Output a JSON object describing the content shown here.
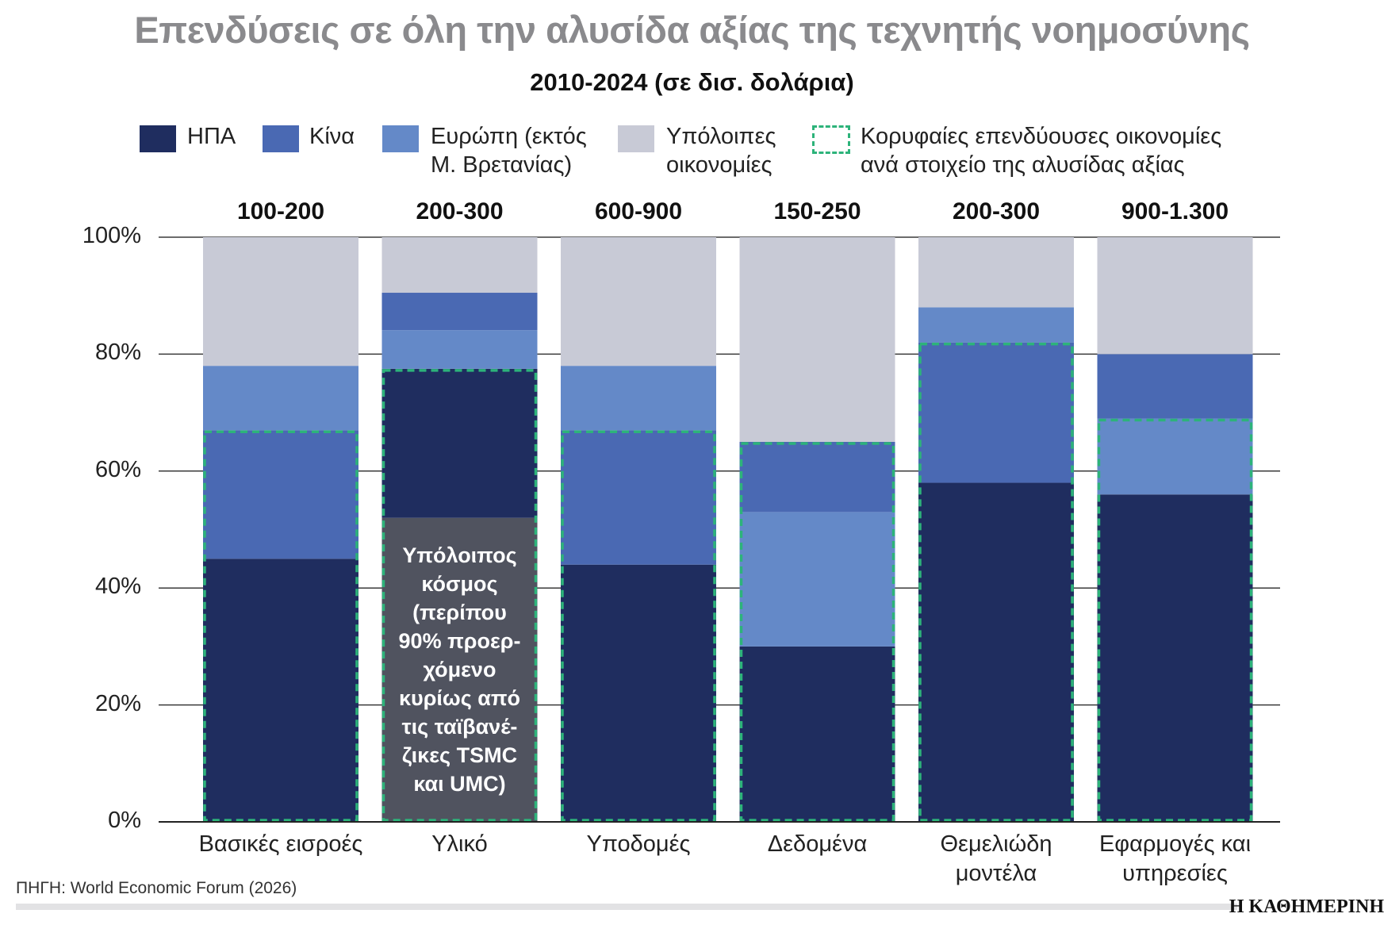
{
  "chart_data": {
    "type": "stacked_bar",
    "title": "Επενδύσεις σε όλη την αλυσίδα αξίας της τεχνητής νοημοσύνης",
    "subtitle": "2010-2024 (σε δισ. δολάρια)",
    "categories": [
      "Βασικές εισροές",
      "Υλικό",
      "Υποδομές",
      "Δεδομένα",
      "Θεμελιώδη μοντέλα",
      "Εφαρμογές και υπηρεσίες"
    ],
    "totals": [
      "100-200",
      "200-300",
      "600-900",
      "150-250",
      "200-300",
      "900-1.300"
    ],
    "ylim": [
      0,
      100
    ],
    "yticks": [
      {
        "value": 0,
        "label": "0%"
      },
      {
        "value": 20,
        "label": "20%"
      },
      {
        "value": 40,
        "label": "40%"
      },
      {
        "value": 60,
        "label": "60%"
      },
      {
        "value": 80,
        "label": "80%"
      },
      {
        "value": 100,
        "label": "100%"
      }
    ],
    "grid": true,
    "highlight_legend": "Κορυφαίες επενδύουσες οικονομίες\nανά στοιχείο της αλυσίδας αξίας",
    "highlight_color": "#2db37a",
    "annotation": {
      "text": "Υπόλοιπος\nκόσμος\n(περίπου\n90% προερ-\nχόμενο\nκυρίως από\nτις ταϊβανέ-\nζικες TSMC\nκαι UMC)",
      "color": "#50535f",
      "values": [
        null,
        52,
        null,
        null,
        null,
        null
      ],
      "highlight": [
        false,
        true,
        false,
        false,
        false,
        false
      ]
    },
    "series": [
      {
        "name": "ΗΠΑ",
        "color": "#1f2d5f",
        "values": [
          45,
          25.5,
          44,
          30,
          58,
          56
        ],
        "highlight": [
          true,
          true,
          true,
          true,
          true,
          true
        ]
      },
      {
        "name": "Κίνα",
        "color": "#4a69b3",
        "values": [
          22,
          6.4,
          23,
          12,
          24,
          11
        ],
        "highlight": [
          true,
          false,
          true,
          true,
          true,
          false
        ]
      },
      {
        "name": "Ευρώπη (εκτός\nΜ. Βρετανίας)",
        "color": "#6489c8",
        "values": [
          11,
          6.6,
          11,
          23,
          6,
          13
        ],
        "highlight": [
          false,
          false,
          false,
          true,
          false,
          true
        ]
      },
      {
        "name": "Υπόλοιπες\nοικονομίες",
        "color": "#c8cad6",
        "values": [
          22,
          9.5,
          22,
          35,
          12,
          20
        ],
        "highlight": [
          false,
          false,
          false,
          false,
          false,
          false
        ]
      }
    ]
  },
  "footer": {
    "source": "ΠΗΓΗ: World Economic Forum (2026)",
    "brand": "Η ΚΑΘΗΜΕΡΙΝΗ"
  }
}
